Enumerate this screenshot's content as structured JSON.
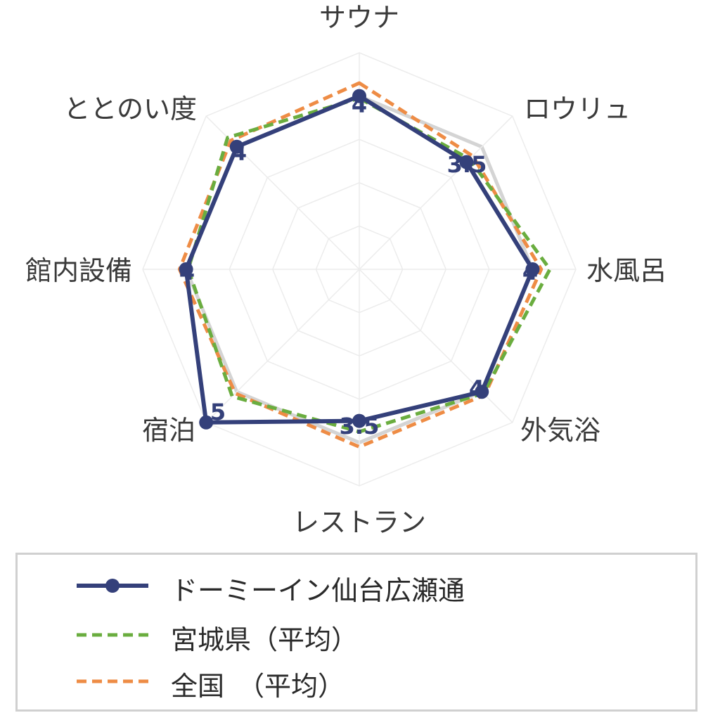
{
  "chart_data": {
    "type": "radar",
    "axes": [
      "サウナ",
      "ロウリュ",
      "水風呂",
      "外気浴",
      "レストラン",
      "宿泊",
      "館内設備",
      "ととのい度"
    ],
    "rmax": 5,
    "series": [
      {
        "name": "ドーミーイン仙台広瀬通",
        "values": [
          4,
          3.5,
          4,
          4,
          3.5,
          5,
          4,
          4
        ],
        "color": "#34407a",
        "style": "solid-marker"
      },
      {
        "name": "宮城県（平均）",
        "values": [
          3.95,
          3.6,
          4.4,
          4.05,
          3.75,
          4.15,
          3.95,
          4.3
        ],
        "color": "#6aad3f",
        "style": "dashed"
      },
      {
        "name": "全国　（平均）",
        "values": [
          4.3,
          3.7,
          4.2,
          4.1,
          4.1,
          4.05,
          4.15,
          4.2
        ],
        "color": "#ee8c45",
        "style": "dashed"
      }
    ],
    "value_labels": [
      "4",
      "3.5",
      "4",
      "4",
      "3.5",
      "5",
      "4",
      "4"
    ],
    "grid": true,
    "legend_position": "bottom"
  }
}
